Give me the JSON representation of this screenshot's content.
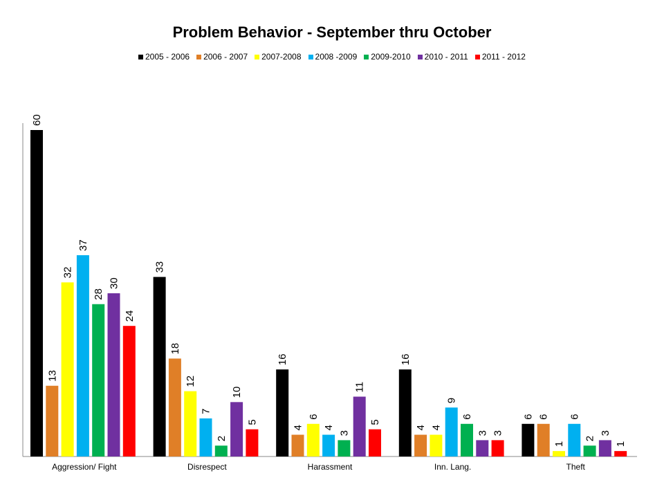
{
  "chart_data": {
    "type": "bar",
    "title": "Problem Behavior - September  thru October",
    "categories": [
      "Aggression/ Fight",
      "Disrespect",
      "Harassment",
      "Inn. Lang.",
      "Theft"
    ],
    "series": [
      {
        "name": "2005 - 2006",
        "color": "#000000",
        "values": [
          60,
          33,
          16,
          16,
          6
        ]
      },
      {
        "name": "2006 - 2007",
        "color": "#E07F27",
        "values": [
          13,
          18,
          4,
          4,
          6
        ]
      },
      {
        "name": "2007-2008",
        "color": "#FFFF00",
        "values": [
          32,
          12,
          6,
          4,
          1
        ]
      },
      {
        "name": "2008 -2009",
        "color": "#00B0F0",
        "values": [
          37,
          7,
          4,
          9,
          6
        ]
      },
      {
        "name": "2009-2010",
        "color": "#00B050",
        "values": [
          28,
          2,
          3,
          6,
          2
        ]
      },
      {
        "name": "2010 - 2011",
        "color": "#7030A0",
        "values": [
          30,
          10,
          11,
          3,
          3
        ]
      },
      {
        "name": "2011 - 2012",
        "color": "#FF0000",
        "values": [
          24,
          5,
          5,
          3,
          1
        ]
      }
    ],
    "xlabel": "",
    "ylabel": "",
    "ylim": [
      0,
      60
    ],
    "legend": "top",
    "grid": false
  }
}
